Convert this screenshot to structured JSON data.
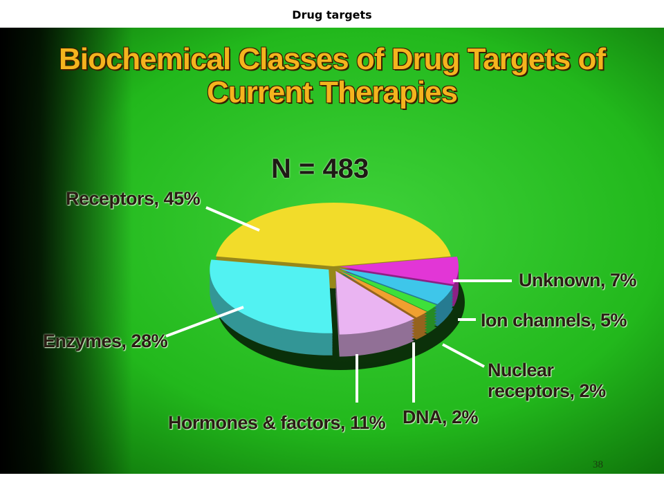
{
  "header": "Drug targets",
  "page_number": "38",
  "chart_data": {
    "type": "pie",
    "title": "Biochemical Classes of Drug Targets of Current Therapies",
    "subtitle": "N = 483",
    "categories": [
      "Receptors, 45%",
      "Unknown, 7%",
      "Ion channels, 5%",
      "Nuclear receptors, 2%",
      "DNA, 2%",
      "Hormones & factors, 11%",
      "Enzymes, 28%"
    ],
    "values": [
      45,
      7,
      5,
      2,
      2,
      11,
      28
    ],
    "colors": [
      "#f2dc2a",
      "#e236d6",
      "#3ec6ea",
      "#3ee03a",
      "#f0a030",
      "#eab4f2",
      "#52f2f2"
    ]
  }
}
